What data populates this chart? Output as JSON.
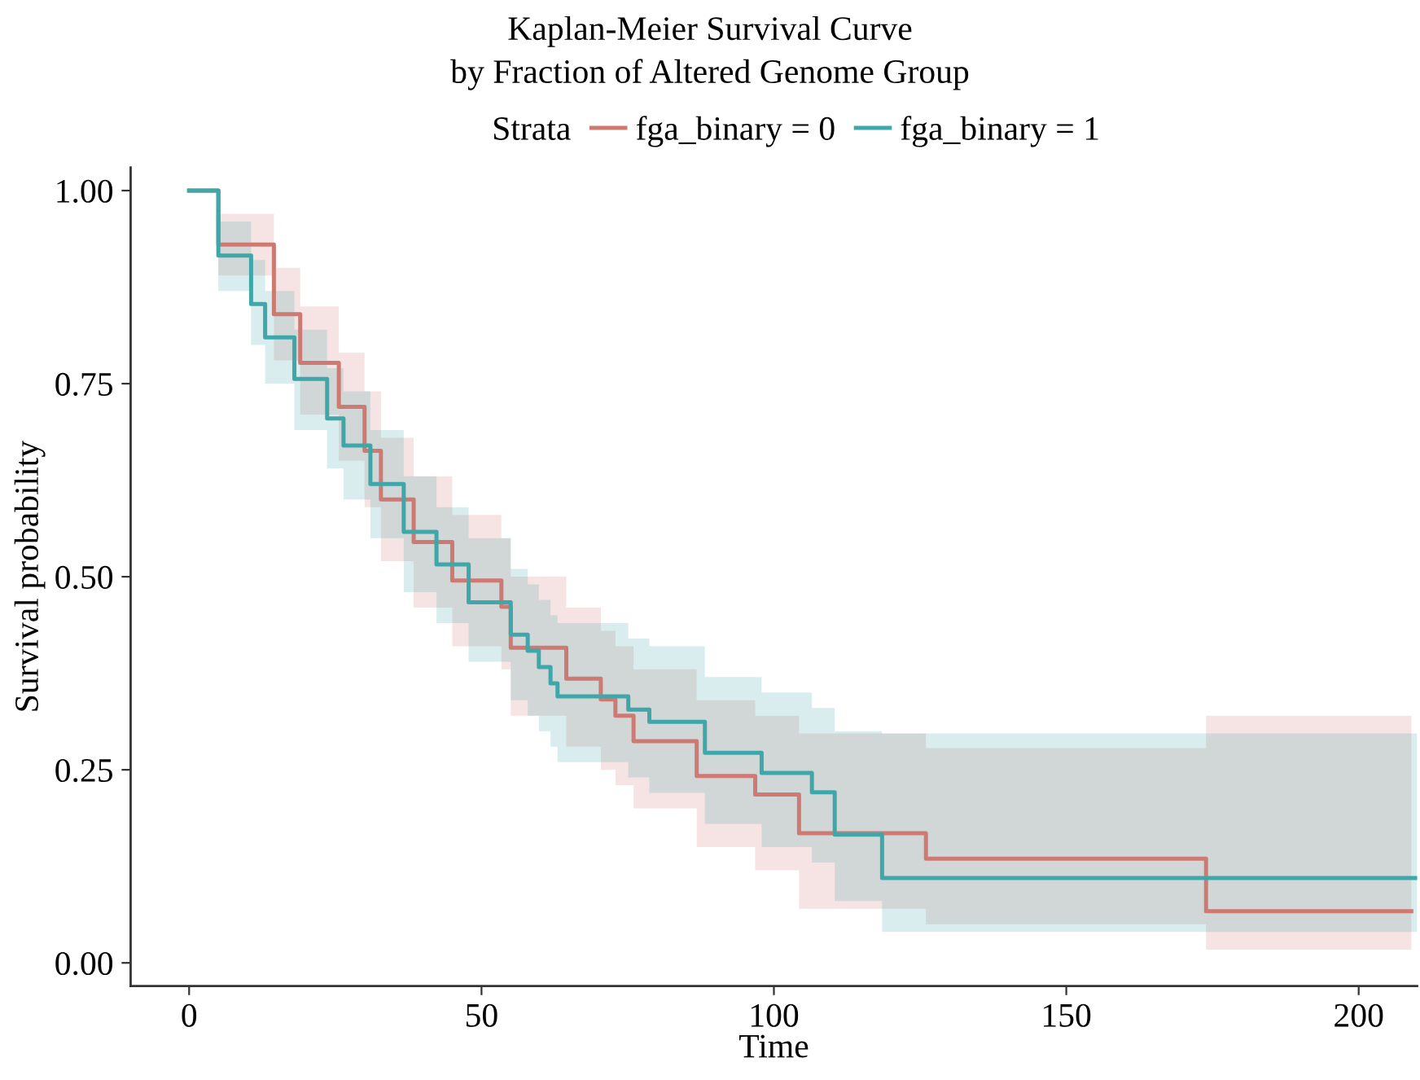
{
  "chart_data": {
    "type": "step",
    "title": "Kaplan-Meier Survival Curve\nby Fraction of Altered Genome Group",
    "xlabel": "Time",
    "ylabel": "Survival probability",
    "legend_title": "Strata",
    "legend": "top",
    "grid": false,
    "xlim": [
      -10,
      210
    ],
    "ylim": [
      -0.03,
      1.03
    ],
    "xticks": [
      0,
      50,
      100,
      150,
      200
    ],
    "yticks": [
      {
        "value": 0,
        "label": "0.00"
      },
      {
        "value": 0.25,
        "label": "0.25"
      },
      {
        "value": 0.5,
        "label": "0.50"
      },
      {
        "value": 0.75,
        "label": "0.75"
      },
      {
        "value": 1,
        "label": "1.00"
      }
    ],
    "series": [
      {
        "name": "fga_binary = 0",
        "color": "#cc7a72",
        "x": [
          0,
          5,
          14.5,
          19,
          25.6,
          30,
          32.8,
          38.4,
          45,
          53.4,
          55,
          64.5,
          70.4,
          72.9,
          76,
          86.8,
          96.8,
          104.3,
          126,
          173.9,
          209
        ],
        "values": [
          1,
          0.93,
          0.84,
          0.777,
          0.72,
          0.663,
          0.6,
          0.545,
          0.495,
          0.461,
          0.408,
          0.368,
          0.341,
          0.32,
          0.287,
          0.242,
          0.218,
          0.168,
          0.135,
          0.067,
          0.067
        ],
        "lower": [
          1,
          0.89,
          0.78,
          0.71,
          0.65,
          0.59,
          0.52,
          0.46,
          0.41,
          0.38,
          0.32,
          0.28,
          0.25,
          0.23,
          0.2,
          0.15,
          0.12,
          0.07,
          0.05,
          0.017,
          0.017
        ],
        "upper": [
          1,
          0.97,
          0.9,
          0.85,
          0.79,
          0.74,
          0.68,
          0.63,
          0.58,
          0.55,
          0.5,
          0.46,
          0.43,
          0.41,
          0.38,
          0.34,
          0.32,
          0.297,
          0.278,
          0.32,
          0.32
        ]
      },
      {
        "name": "fga_binary = 1",
        "color": "#3fa6aa",
        "x": [
          0,
          5,
          10.6,
          13,
          18,
          23.6,
          26.4,
          31,
          36.7,
          42.3,
          47.8,
          55,
          57.9,
          59.8,
          61.8,
          63,
          75.1,
          78.7,
          88.2,
          97.9,
          106.5,
          110.4,
          118.5,
          210
        ],
        "values": [
          1,
          0.916,
          0.853,
          0.81,
          0.756,
          0.705,
          0.67,
          0.62,
          0.558,
          0.516,
          0.467,
          0.425,
          0.404,
          0.383,
          0.362,
          0.345,
          0.328,
          0.312,
          0.272,
          0.246,
          0.221,
          0.166,
          0.11,
          0.11
        ],
        "lower": [
          1,
          0.87,
          0.8,
          0.75,
          0.69,
          0.64,
          0.6,
          0.55,
          0.48,
          0.44,
          0.39,
          0.34,
          0.32,
          0.3,
          0.28,
          0.26,
          0.24,
          0.22,
          0.18,
          0.15,
          0.13,
          0.08,
          0.04,
          0.04
        ],
        "upper": [
          1,
          0.96,
          0.91,
          0.87,
          0.82,
          0.77,
          0.74,
          0.69,
          0.63,
          0.59,
          0.55,
          0.51,
          0.49,
          0.47,
          0.45,
          0.44,
          0.42,
          0.41,
          0.37,
          0.35,
          0.33,
          0.3,
          0.297,
          0.297
        ]
      }
    ]
  }
}
